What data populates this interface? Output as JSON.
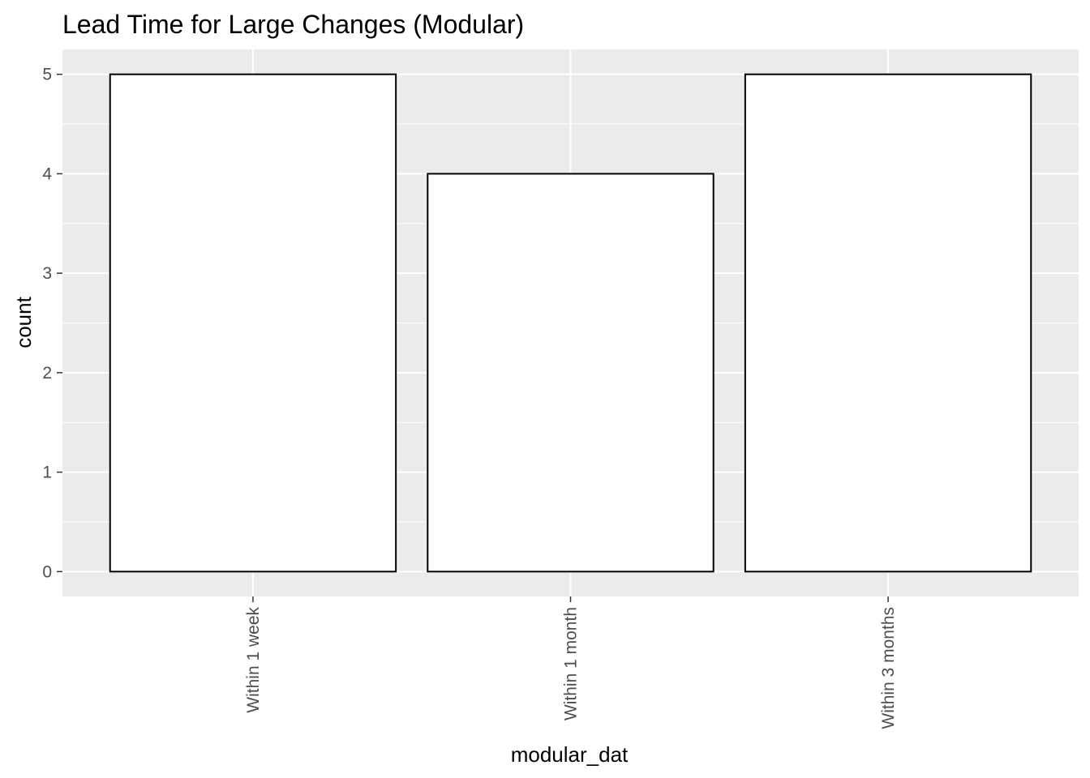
{
  "chart_data": {
    "type": "bar",
    "title": "Lead Time for Large Changes (Modular)",
    "xlabel": "modular_dat",
    "ylabel": "count",
    "categories": [
      "Within 1 week",
      "Within 1 month",
      "Within 3 months"
    ],
    "values": [
      5,
      4,
      5
    ],
    "ylim": [
      -0.25,
      5.25
    ],
    "yticks": [
      0,
      1,
      2,
      3,
      4,
      5
    ],
    "grid": true,
    "legend": "none",
    "colors": {
      "panel_background": "#ebebeb",
      "grid": "#ffffff",
      "bar_fill": "#ffffff",
      "bar_outline": "#000000",
      "tick_text": "#4d4d4d",
      "tick_mark": "#333333"
    }
  }
}
